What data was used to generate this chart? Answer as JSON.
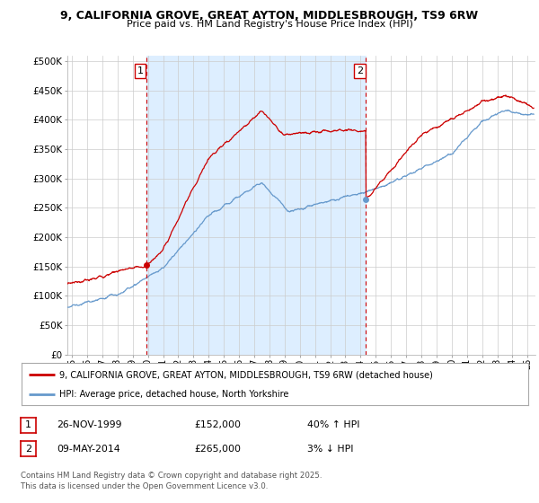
{
  "title1": "9, CALIFORNIA GROVE, GREAT AYTON, MIDDLESBROUGH, TS9 6RW",
  "title2": "Price paid vs. HM Land Registry's House Price Index (HPI)",
  "ylabel_ticks": [
    "£0",
    "£50K",
    "£100K",
    "£150K",
    "£200K",
    "£250K",
    "£300K",
    "£350K",
    "£400K",
    "£450K",
    "£500K"
  ],
  "ytick_values": [
    0,
    50000,
    100000,
    150000,
    200000,
    250000,
    300000,
    350000,
    400000,
    450000,
    500000
  ],
  "ylim": [
    0,
    510000
  ],
  "xlim_start": 1994.7,
  "xlim_end": 2025.5,
  "sale1_x": 1999.9,
  "sale1_y": 152000,
  "sale2_x": 2014.35,
  "sale2_y": 265000,
  "legend_line1": "9, CALIFORNIA GROVE, GREAT AYTON, MIDDLESBROUGH, TS9 6RW (detached house)",
  "legend_line2": "HPI: Average price, detached house, North Yorkshire",
  "annotation1_label": "1",
  "annotation2_label": "2",
  "table_row1": [
    "1",
    "26-NOV-1999",
    "£152,000",
    "40% ↑ HPI"
  ],
  "table_row2": [
    "2",
    "09-MAY-2014",
    "£265,000",
    "3% ↓ HPI"
  ],
  "footer": "Contains HM Land Registry data © Crown copyright and database right 2025.\nThis data is licensed under the Open Government Licence v3.0.",
  "color_red": "#cc0000",
  "color_blue": "#6699cc",
  "shade_color": "#ddeeff",
  "background": "#ffffff",
  "grid_color": "#cccccc"
}
